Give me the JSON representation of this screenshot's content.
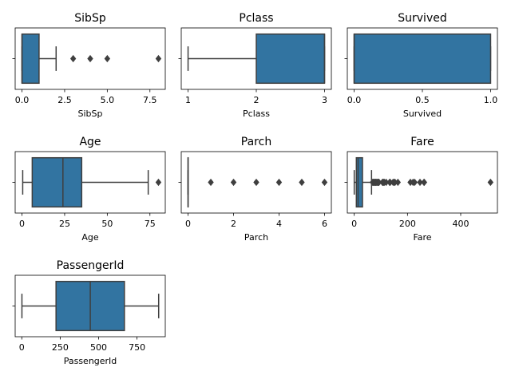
{
  "chart_data": [
    {
      "type": "box",
      "title": "SibSp",
      "xlabel": "SibSp",
      "xlim": [
        -0.4,
        8.4
      ],
      "ticks": [
        0,
        2.5,
        5,
        7.5
      ],
      "tick_labels": [
        "0.0",
        "2.5",
        "5.0",
        "7.5"
      ],
      "box": {
        "whisker_low": 0,
        "q1": 0,
        "median": 0,
        "q3": 1,
        "whisker_high": 2
      },
      "outliers": [
        3,
        4,
        5,
        8
      ],
      "color": "#3274a1"
    },
    {
      "type": "box",
      "title": "Pclass",
      "xlabel": "Pclass",
      "xlim": [
        0.9,
        3.1
      ],
      "ticks": [
        1,
        2,
        3
      ],
      "tick_labels": [
        "1",
        "2",
        "3"
      ],
      "box": {
        "whisker_low": 1,
        "q1": 2,
        "median": 3,
        "q3": 3,
        "whisker_high": 3
      },
      "outliers": [],
      "color": "#3274a1"
    },
    {
      "type": "box",
      "title": "Survived",
      "xlabel": "Survived",
      "xlim": [
        -0.05,
        1.05
      ],
      "ticks": [
        0,
        0.5,
        1
      ],
      "tick_labels": [
        "0.0",
        "0.5",
        "1.0"
      ],
      "box": {
        "whisker_low": 0,
        "q1": 0,
        "median": 0,
        "q3": 1,
        "whisker_high": 1
      },
      "outliers": [],
      "color": "#3274a1"
    },
    {
      "type": "box",
      "title": "Age",
      "xlabel": "Age",
      "xlim": [
        -4,
        84
      ],
      "ticks": [
        0,
        25,
        50,
        75
      ],
      "tick_labels": [
        "0",
        "25",
        "50",
        "75"
      ],
      "box": {
        "whisker_low": 0.42,
        "q1": 6,
        "median": 24,
        "q3": 35,
        "whisker_high": 74
      },
      "outliers": [
        80
      ],
      "color": "#3274a1"
    },
    {
      "type": "box",
      "title": "Parch",
      "xlabel": "Parch",
      "xlim": [
        -0.3,
        6.3
      ],
      "ticks": [
        0,
        2,
        4,
        6
      ],
      "tick_labels": [
        "0",
        "2",
        "4",
        "6"
      ],
      "box": {
        "whisker_low": 0,
        "q1": 0,
        "median": 0,
        "q3": 0,
        "whisker_high": 0
      },
      "outliers": [
        1,
        2,
        3,
        4,
        5,
        6
      ],
      "color": "#3274a1"
    },
    {
      "type": "box",
      "title": "Fare",
      "xlabel": "Fare",
      "xlim": [
        -26,
        538
      ],
      "ticks": [
        0,
        200,
        400
      ],
      "tick_labels": [
        "0",
        "200",
        "400"
      ],
      "box": {
        "whisker_low": 0,
        "q1": 7.9,
        "median": 14.5,
        "q3": 31,
        "whisker_high": 65
      },
      "outliers": [
        69,
        71,
        73,
        76,
        78,
        80,
        82,
        83,
        86,
        89,
        91,
        93,
        106,
        108,
        110,
        113,
        120,
        133,
        135,
        146,
        151,
        153,
        164,
        211,
        221,
        227,
        247,
        262,
        263,
        512
      ],
      "color": "#3274a1"
    },
    {
      "type": "box",
      "title": "PassengerId",
      "xlabel": "PassengerId",
      "xlim": [
        -43,
        934
      ],
      "ticks": [
        0,
        250,
        500,
        750
      ],
      "tick_labels": [
        "0",
        "250",
        "500",
        "750"
      ],
      "box": {
        "whisker_low": 1,
        "q1": 223,
        "median": 446,
        "q3": 668,
        "whisker_high": 891
      },
      "outliers": [],
      "color": "#3274a1"
    }
  ]
}
